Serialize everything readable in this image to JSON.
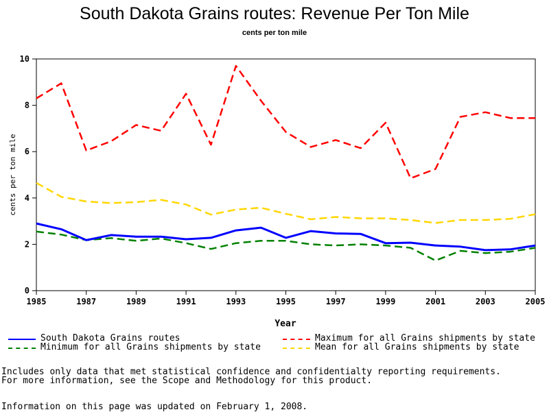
{
  "chart_data": {
    "type": "line",
    "title": "South Dakota Grains routes: Revenue Per Ton Mile",
    "subtitle": "cents per ton mile",
    "xlabel": "Year",
    "ylabel": "cents per ton mile",
    "xlim": [
      1985,
      2005
    ],
    "ylim": [
      0,
      10
    ],
    "x_ticks": [
      "1985",
      "1987",
      "1989",
      "1991",
      "1993",
      "1995",
      "1997",
      "1999",
      "2001",
      "2003",
      "2005"
    ],
    "y_ticks": [
      "0",
      "2",
      "4",
      "6",
      "8",
      "10"
    ],
    "x": [
      1985,
      1986,
      1987,
      1988,
      1989,
      1990,
      1991,
      1992,
      1993,
      1994,
      1995,
      1996,
      1997,
      1998,
      1999,
      2000,
      2001,
      2002,
      2003,
      2004,
      2005
    ],
    "series": [
      {
        "name": "South Dakota Grains routes",
        "color": "#0000ff",
        "style": "solid",
        "values": [
          2.9,
          2.65,
          2.18,
          2.4,
          2.33,
          2.33,
          2.22,
          2.28,
          2.6,
          2.72,
          2.28,
          2.57,
          2.47,
          2.45,
          2.05,
          2.07,
          1.95,
          1.9,
          1.75,
          1.78,
          1.95
        ]
      },
      {
        "name": "Maximum for all Grains shipments by state",
        "color": "#ff0000",
        "style": "dashed",
        "values": [
          8.3,
          8.95,
          6.05,
          6.45,
          7.15,
          6.9,
          8.5,
          6.3,
          9.7,
          8.2,
          6.85,
          6.2,
          6.5,
          6.15,
          7.25,
          4.85,
          5.25,
          7.5,
          7.7,
          7.45,
          7.45
        ]
      },
      {
        "name": "Minimum for all Grains shipments by state",
        "color": "#008000",
        "style": "dashed",
        "values": [
          2.55,
          2.42,
          2.18,
          2.27,
          2.15,
          2.25,
          2.05,
          1.8,
          2.05,
          2.15,
          2.15,
          2.0,
          1.95,
          2.0,
          1.95,
          1.85,
          1.3,
          1.72,
          1.62,
          1.68,
          1.85
        ]
      },
      {
        "name": "Mean for all Grains shipments by state",
        "color": "#ffd700",
        "style": "dashed",
        "values": [
          4.65,
          4.05,
          3.85,
          3.78,
          3.82,
          3.92,
          3.72,
          3.28,
          3.5,
          3.58,
          3.32,
          3.08,
          3.18,
          3.12,
          3.12,
          3.05,
          2.92,
          3.05,
          3.05,
          3.1,
          3.3
        ]
      }
    ],
    "grid": false,
    "legend_position": "bottom"
  },
  "footnotes": {
    "line1": "Includes only data that met statistical confidence and confidentialty reporting requirements.",
    "line2": "For more information, see the Scope and Methodology for this product.",
    "line3": "Information on this page was updated on February 1, 2008."
  }
}
